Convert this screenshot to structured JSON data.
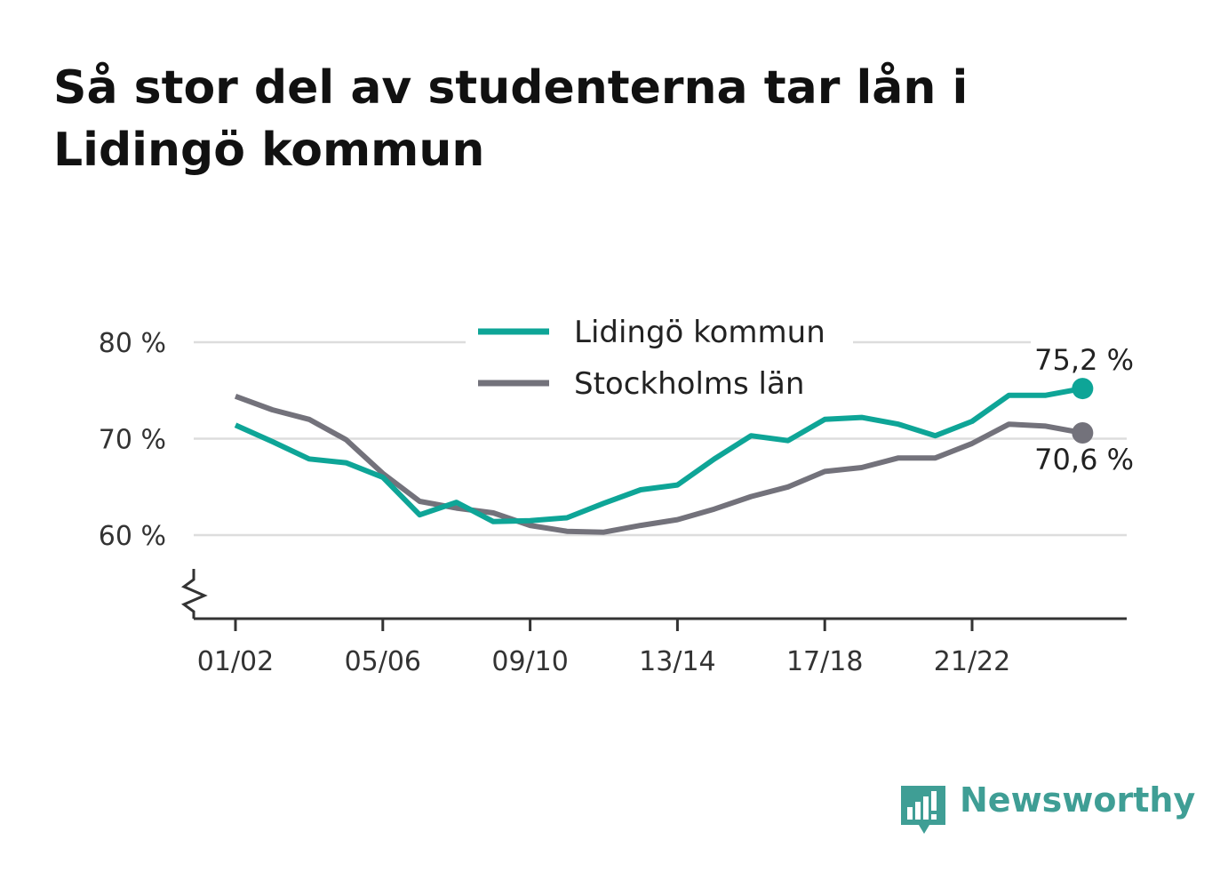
{
  "title": "Så stor del av studenterna tar lån i Lidingö kommun",
  "brand": {
    "name": "Newsworthy",
    "color": "#3f9e95"
  },
  "colors": {
    "grid": "#dddddd",
    "axis": "#333333",
    "text": "#333333"
  },
  "chart_data": {
    "type": "line",
    "x_tick_labels": [
      "01/02",
      "05/06",
      "09/10",
      "13/14",
      "17/18",
      "21/22"
    ],
    "x_tick_index": [
      0,
      4,
      8,
      12,
      16,
      20
    ],
    "y_ticks": [
      60,
      70,
      80
    ],
    "y_tick_labels": [
      "60 %",
      "70 %",
      "80 %"
    ],
    "ylim": [
      51.5,
      80
    ],
    "y_axis_break": true,
    "grid": true,
    "legend_position": "top-center",
    "series": [
      {
        "name": "Lidingö kommun",
        "color": "#0ea597",
        "values": [
          71.4,
          69.7,
          67.9,
          67.5,
          66.0,
          62.1,
          63.4,
          61.4,
          61.5,
          61.8,
          63.3,
          64.7,
          65.2,
          67.9,
          70.3,
          69.8,
          72.0,
          72.2,
          71.5,
          70.3,
          71.8,
          74.5,
          74.5,
          75.2
        ],
        "end_label": "75,2 %"
      },
      {
        "name": "Stockholms län",
        "color": "#73727b",
        "values": [
          74.4,
          73.0,
          72.0,
          69.9,
          66.4,
          63.5,
          62.8,
          62.3,
          61.0,
          60.4,
          60.3,
          61.0,
          61.6,
          62.7,
          64.0,
          65.0,
          66.6,
          67.0,
          68.0,
          68.0,
          69.5,
          71.5,
          71.3,
          70.6
        ],
        "end_label": "70,6 %"
      }
    ]
  }
}
